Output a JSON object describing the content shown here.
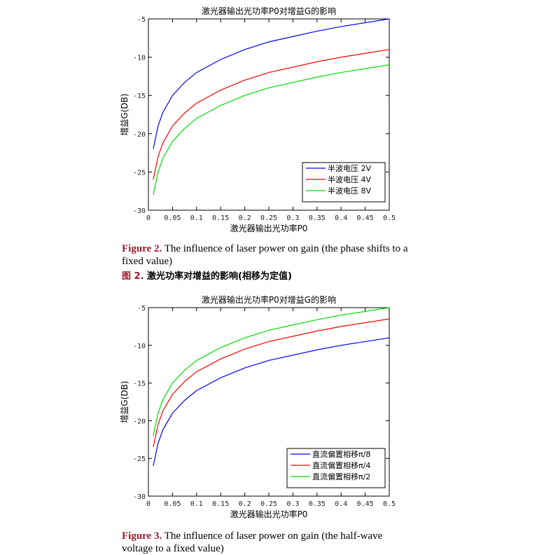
{
  "chart_data": [
    {
      "type": "line",
      "title": "激光器输出光功率P0对增益G的影响",
      "xlabel": "激光器输出光功率P0",
      "ylabel": "增益G(DB)",
      "xlim": [
        0,
        0.5
      ],
      "ylim": [
        -30,
        -5
      ],
      "xticks": [
        "0",
        "0.05",
        "0.1",
        "0.15",
        "0.2",
        "0.25",
        "0.3",
        "0.35",
        "0.4",
        "0.45",
        "0.5"
      ],
      "yticks": [
        "-5",
        "-10",
        "-15",
        "-20",
        "-25",
        "-30"
      ],
      "grid": false,
      "legend_position": "bottom-right",
      "series": [
        {
          "name": "半波电压 2V",
          "color": "#0000ff",
          "x": [
            0.01,
            0.02,
            0.03,
            0.05,
            0.075,
            0.1,
            0.15,
            0.2,
            0.25,
            0.3,
            0.35,
            0.4,
            0.45,
            0.5
          ],
          "y": [
            -22.0,
            -19.0,
            -17.2,
            -15.0,
            -13.3,
            -12.0,
            -10.3,
            -9.0,
            -8.0,
            -7.3,
            -6.6,
            -6.0,
            -5.5,
            -5.0
          ]
        },
        {
          "name": "半波电压 4V",
          "color": "#ff0000",
          "x": [
            0.01,
            0.02,
            0.03,
            0.05,
            0.075,
            0.1,
            0.15,
            0.2,
            0.25,
            0.3,
            0.35,
            0.4,
            0.45,
            0.5
          ],
          "y": [
            -26.0,
            -23.0,
            -21.2,
            -19.0,
            -17.3,
            -16.0,
            -14.3,
            -13.0,
            -12.0,
            -11.3,
            -10.6,
            -10.0,
            -9.5,
            -9.0
          ]
        },
        {
          "name": "半波电压 8V",
          "color": "#00dd00",
          "x": [
            0.01,
            0.02,
            0.03,
            0.05,
            0.075,
            0.1,
            0.15,
            0.2,
            0.25,
            0.3,
            0.35,
            0.4,
            0.45,
            0.5
          ],
          "y": [
            -28.0,
            -25.0,
            -23.2,
            -21.0,
            -19.3,
            -18.0,
            -16.3,
            -15.0,
            -14.0,
            -13.3,
            -12.6,
            -12.0,
            -11.5,
            -11.0
          ]
        }
      ]
    },
    {
      "type": "line",
      "title": "激光器输出光功率P0对增益G的影响",
      "xlabel": "激光器输出光功率P0",
      "ylabel": "增益G(DB)",
      "xlim": [
        0,
        0.5
      ],
      "ylim": [
        -30,
        -5
      ],
      "xticks": [
        "0",
        "0.05",
        "0.1",
        "0.15",
        "0.2",
        "0.25",
        "0.3",
        "0.35",
        "0.4",
        "0.45",
        "0.5"
      ],
      "yticks": [
        "-5",
        "-10",
        "-15",
        "-20",
        "-25",
        "-30"
      ],
      "grid": false,
      "legend_position": "bottom-right",
      "series": [
        {
          "name": "直流偏置相移π/8",
          "color": "#0000ff",
          "x": [
            0.01,
            0.02,
            0.03,
            0.05,
            0.075,
            0.1,
            0.15,
            0.2,
            0.25,
            0.3,
            0.35,
            0.4,
            0.45,
            0.5
          ],
          "y": [
            -26.0,
            -23.0,
            -21.2,
            -19.0,
            -17.3,
            -16.0,
            -14.3,
            -13.0,
            -12.0,
            -11.3,
            -10.6,
            -10.0,
            -9.5,
            -9.0
          ]
        },
        {
          "name": "直流偏置相移π/4",
          "color": "#ff0000",
          "x": [
            0.01,
            0.02,
            0.03,
            0.05,
            0.075,
            0.1,
            0.15,
            0.2,
            0.25,
            0.3,
            0.35,
            0.4,
            0.45,
            0.5
          ],
          "y": [
            -23.5,
            -20.5,
            -18.7,
            -16.5,
            -14.8,
            -13.5,
            -11.8,
            -10.5,
            -9.5,
            -8.8,
            -8.1,
            -7.5,
            -7.0,
            -6.5
          ]
        },
        {
          "name": "直流偏置相移π/2",
          "color": "#00dd00",
          "x": [
            0.01,
            0.02,
            0.03,
            0.05,
            0.075,
            0.1,
            0.15,
            0.2,
            0.25,
            0.3,
            0.35,
            0.4,
            0.45,
            0.5
          ],
          "y": [
            -22.0,
            -19.0,
            -17.2,
            -15.0,
            -13.3,
            -12.0,
            -10.3,
            -9.0,
            -8.0,
            -7.3,
            -6.6,
            -6.0,
            -5.5,
            -5.0
          ]
        }
      ]
    }
  ],
  "captions": {
    "fig2_label": "Figure 2.",
    "fig2_text": " The influence of laser power on gain (the phase shifts to a fixed value)",
    "fig2_cn_label": "图 2.",
    "fig2_cn_text": "  激光功率对增益的影响(相移为定值)",
    "fig3_label": "Figure 3.",
    "fig3_text": " The influence of laser power on gain (the half-wave voltage to a fixed value)"
  }
}
